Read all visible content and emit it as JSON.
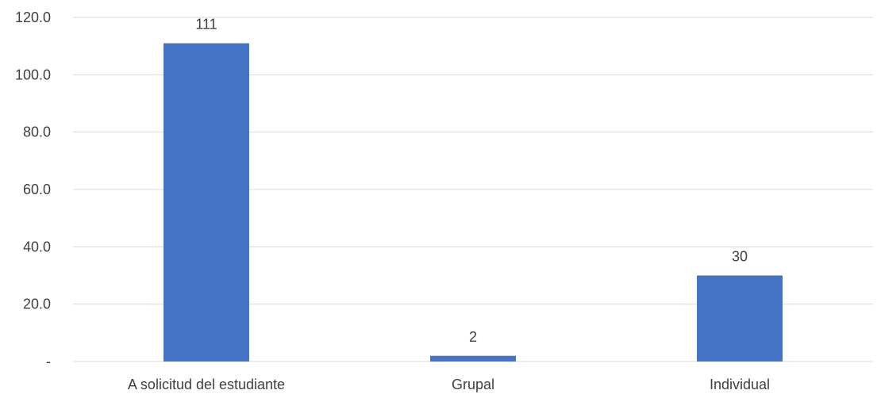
{
  "chart_data": {
    "type": "bar",
    "categories": [
      "A solicitud del estudiante",
      "Grupal",
      "Individual"
    ],
    "values": [
      111,
      2,
      30
    ],
    "data_labels": [
      "111",
      "2",
      "30"
    ],
    "title": "",
    "xlabel": "",
    "ylabel": "",
    "ylim": [
      0,
      120
    ],
    "yticks": [
      0,
      20,
      40,
      60,
      80,
      100,
      120
    ],
    "ytick_labels": [
      "-",
      "20.0",
      "40.0",
      "60.0",
      "80.0",
      "100.0",
      "120.0"
    ],
    "grid": true,
    "legend": "none",
    "colors": {
      "bar": "#4472C4",
      "grid": "#D9D9D9",
      "text": "#404040"
    }
  }
}
